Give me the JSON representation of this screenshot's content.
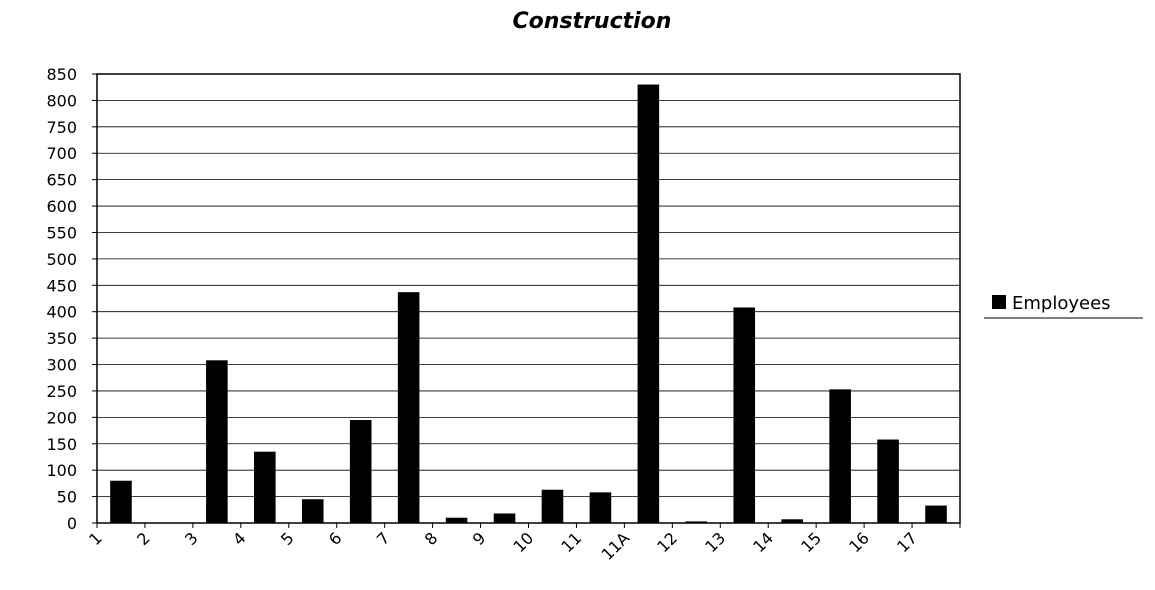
{
  "chart_data": {
    "type": "bar",
    "title": "Construction",
    "xlabel": "",
    "ylabel": "",
    "categories": [
      "1",
      "2",
      "3",
      "4",
      "5",
      "6",
      "7",
      "8",
      "9",
      "10",
      "11",
      "11A",
      "12",
      "13",
      "14",
      "15",
      "16",
      "17"
    ],
    "series": [
      {
        "name": "Employees",
        "color": "#000000",
        "values": [
          80,
          0,
          308,
          135,
          45,
          195,
          437,
          10,
          18,
          63,
          58,
          830,
          3,
          408,
          7,
          253,
          158,
          33
        ]
      }
    ],
    "ylim": [
      0,
      850
    ],
    "yticks": [
      0,
      50,
      100,
      150,
      200,
      250,
      300,
      350,
      400,
      450,
      500,
      550,
      600,
      650,
      700,
      750,
      800,
      850
    ],
    "grid": true,
    "legend_position": "right"
  }
}
